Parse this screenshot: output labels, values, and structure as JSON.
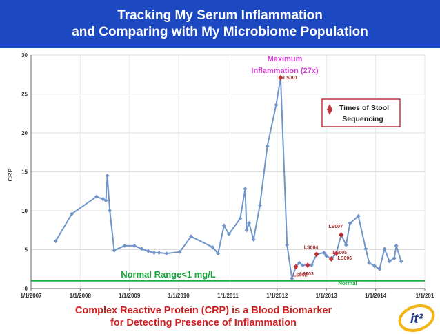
{
  "banner": {
    "line1": "Tracking My Serum Inflammation",
    "line2": "and Comparing with My Microbiome Population"
  },
  "caption": {
    "line1": "Complex Reactive Protein (CRP) is a Blood Biomarker",
    "line2": "for Detecting Presence of Inflammation"
  },
  "logo": {
    "text": "it²",
    "colors": {
      "navy": "#1d3a8a",
      "gold": "#f3b515"
    }
  },
  "colors": {
    "banner": "#1c48c2",
    "line": "#6f95c9",
    "marker": "#6f95c9",
    "stool": "#c0343a",
    "normal_line": "#17b33d",
    "normal_text": "#19a23a",
    "caption": "#cc1e1e",
    "max_label": "#d43cd4"
  },
  "chart_data": {
    "type": "line",
    "ylabel": "CRP",
    "xlabel": "",
    "ylim": [
      0,
      30
    ],
    "yticks": [
      0,
      5,
      10,
      15,
      20,
      25,
      30
    ],
    "xlim": [
      2007.0,
      2015.0
    ],
    "xticks": [
      {
        "x": 2007.0,
        "label": "1/1/2007"
      },
      {
        "x": 2008.0,
        "label": "1/1/2008"
      },
      {
        "x": 2009.0,
        "label": "1/1/2009"
      },
      {
        "x": 2010.0,
        "label": "1/1/2010"
      },
      {
        "x": 2011.0,
        "label": "1/1/2011"
      },
      {
        "x": 2012.0,
        "label": "1/1/2012"
      },
      {
        "x": 2013.0,
        "label": "1/1/2013"
      },
      {
        "x": 2014.0,
        "label": "1/1/2014"
      },
      {
        "x": 2015.0,
        "label": "1/1/201"
      }
    ],
    "series": [
      {
        "name": "CRP",
        "points": [
          [
            2007.5,
            6.1
          ],
          [
            2007.83,
            9.6
          ],
          [
            2008.33,
            11.8
          ],
          [
            2008.46,
            11.5
          ],
          [
            2008.52,
            11.3
          ],
          [
            2008.55,
            14.5
          ],
          [
            2008.6,
            10.0
          ],
          [
            2008.69,
            4.9
          ],
          [
            2008.9,
            5.5
          ],
          [
            2009.1,
            5.5
          ],
          [
            2009.25,
            5.1
          ],
          [
            2009.38,
            4.8
          ],
          [
            2009.5,
            4.6
          ],
          [
            2009.6,
            4.6
          ],
          [
            2009.75,
            4.5
          ],
          [
            2010.02,
            4.7
          ],
          [
            2010.25,
            6.7
          ],
          [
            2010.69,
            5.3
          ],
          [
            2010.8,
            4.5
          ],
          [
            2010.92,
            8.1
          ],
          [
            2011.02,
            7.0
          ],
          [
            2011.25,
            9.0
          ],
          [
            2011.35,
            12.8
          ],
          [
            2011.38,
            7.5
          ],
          [
            2011.43,
            8.4
          ],
          [
            2011.52,
            6.3
          ],
          [
            2011.65,
            10.7
          ],
          [
            2011.8,
            18.3
          ],
          [
            2011.98,
            23.6
          ],
          [
            2012.07,
            27.1
          ],
          [
            2012.2,
            5.6
          ],
          [
            2012.3,
            1.3
          ],
          [
            2012.38,
            2.8
          ],
          [
            2012.45,
            3.3
          ],
          [
            2012.52,
            3.0
          ],
          [
            2012.62,
            3.0
          ],
          [
            2012.7,
            3.0
          ],
          [
            2012.8,
            4.4
          ],
          [
            2012.95,
            4.6
          ],
          [
            2013.0,
            4.2
          ],
          [
            2013.1,
            3.8
          ],
          [
            2013.2,
            4.5
          ],
          [
            2013.3,
            6.9
          ],
          [
            2013.4,
            5.6
          ],
          [
            2013.48,
            8.4
          ],
          [
            2013.65,
            9.3
          ],
          [
            2013.8,
            5.1
          ],
          [
            2013.87,
            3.3
          ],
          [
            2013.98,
            2.9
          ],
          [
            2014.08,
            2.5
          ],
          [
            2014.18,
            5.1
          ],
          [
            2014.28,
            3.5
          ],
          [
            2014.38,
            3.9
          ],
          [
            2014.42,
            5.5
          ],
          [
            2014.52,
            3.5
          ]
        ]
      }
    ],
    "stool_samples": [
      {
        "label": "LS001",
        "x": 2012.07,
        "y": 27.1
      },
      {
        "label": "LS002",
        "x": 2012.38,
        "y": 2.8
      },
      {
        "label": "LS003",
        "x": 2012.62,
        "y": 3.0
      },
      {
        "label": "LS004",
        "x": 2012.8,
        "y": 4.4
      },
      {
        "label": "LS005",
        "x": 2013.1,
        "y": 3.8
      },
      {
        "label": "LS006",
        "x": 2013.2,
        "y": 4.5
      },
      {
        "label": "LS007",
        "x": 2013.3,
        "y": 6.9
      }
    ],
    "normal_threshold": 1,
    "annotations": {
      "max_line1": "Maximum",
      "max_line2": "Inflammation (27x)",
      "normal_range": "Normal Range<1 mg/L",
      "normal": "Normal"
    },
    "legend": {
      "line1": "Times of Stool",
      "line2": "Sequencing",
      "position": "top-right"
    }
  }
}
